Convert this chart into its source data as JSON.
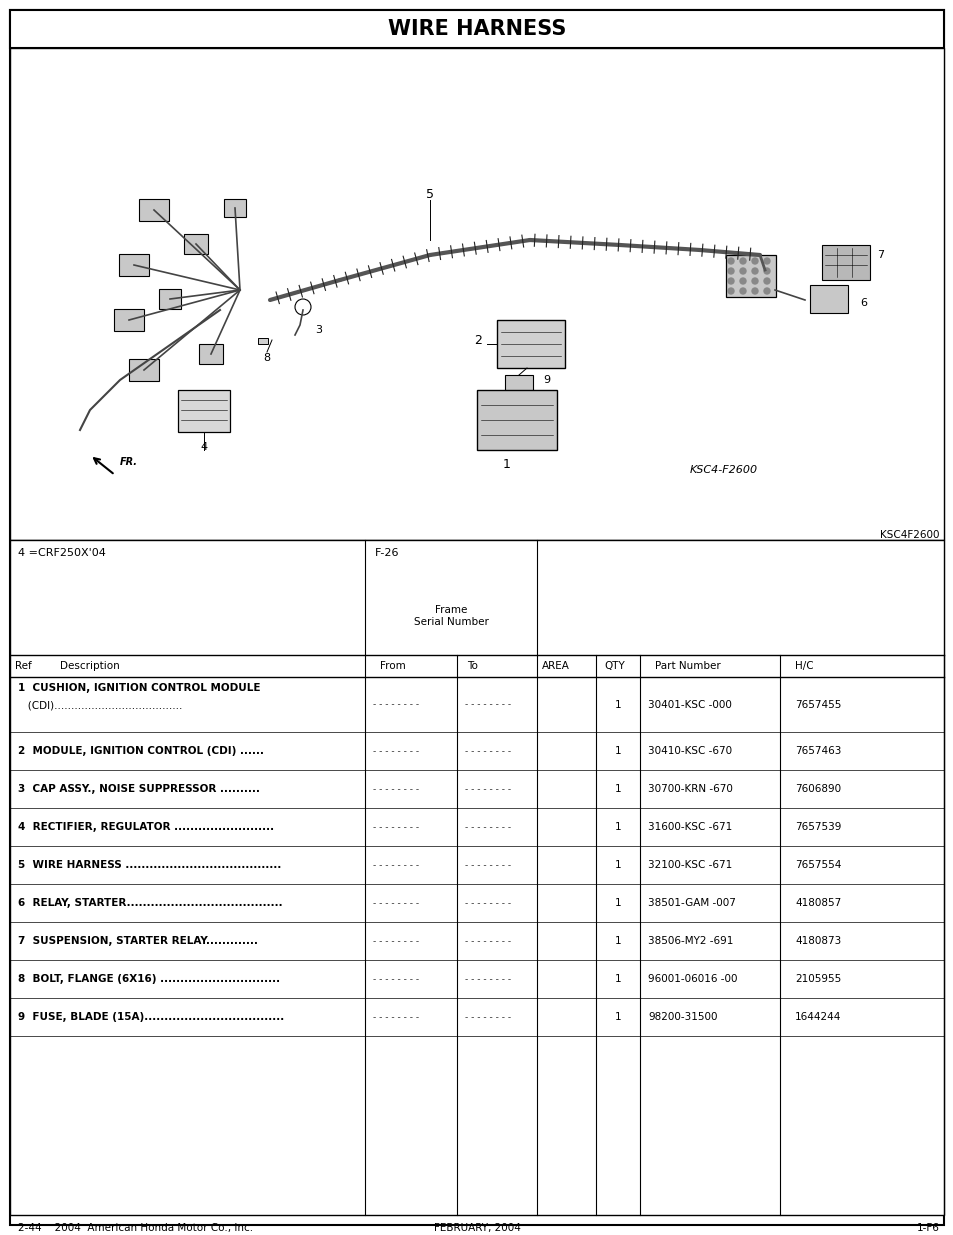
{
  "title": "WIRE HARNESS",
  "background_color": "#ffffff",
  "image_code": "KSC4-F2600",
  "image_code2": "KSC4F2600",
  "model_note": "4 =CRF250X'04",
  "frame_label": "F-26",
  "parts": [
    {
      "ref": "1",
      "desc1": "1  CUSHION, IGNITION CONTROL MODULE",
      "desc2": "   (CDI)......................................",
      "qty": "1",
      "part": "30401-KSC -000",
      "hc": "7657455"
    },
    {
      "ref": "2",
      "desc1": "2  MODULE, IGNITION CONTROL (CDI) ......",
      "desc2": "",
      "qty": "1",
      "part": "30410-KSC -670",
      "hc": "7657463"
    },
    {
      "ref": "3",
      "desc1": "3  CAP ASSY., NOISE SUPPRESSOR ..........",
      "desc2": "",
      "qty": "1",
      "part": "30700-KRN -670",
      "hc": "7606890"
    },
    {
      "ref": "4",
      "desc1": "4  RECTIFIER, REGULATOR .........................",
      "desc2": "",
      "qty": "1",
      "part": "31600-KSC -671",
      "hc": "7657539"
    },
    {
      "ref": "5",
      "desc1": "5  WIRE HARNESS .......................................",
      "desc2": "",
      "qty": "1",
      "part": "32100-KSC -671",
      "hc": "7657554"
    },
    {
      "ref": "6",
      "desc1": "6  RELAY, STARTER.......................................",
      "desc2": "",
      "qty": "1",
      "part": "38501-GAM -007",
      "hc": "4180857"
    },
    {
      "ref": "7",
      "desc1": "7  SUSPENSION, STARTER RELAY.............",
      "desc2": "",
      "qty": "1",
      "part": "38506-MY2 -691",
      "hc": "4180873"
    },
    {
      "ref": "8",
      "desc1": "8  BOLT, FLANGE (6X16) ..............................",
      "desc2": "",
      "qty": "1",
      "part": "96001-06016 -00",
      "hc": "2105955"
    },
    {
      "ref": "9",
      "desc1": "9  FUSE, BLADE (15A)...................................",
      "desc2": "",
      "qty": "1",
      "part": "98200-31500",
      "hc": "1644244"
    }
  ],
  "footer_left": "2-44    2004  American Honda Motor Co., Inc.",
  "footer_center": "FEBRUARY, 2004",
  "footer_right": "1-F6",
  "page_width": 9.54,
  "page_height": 12.35
}
